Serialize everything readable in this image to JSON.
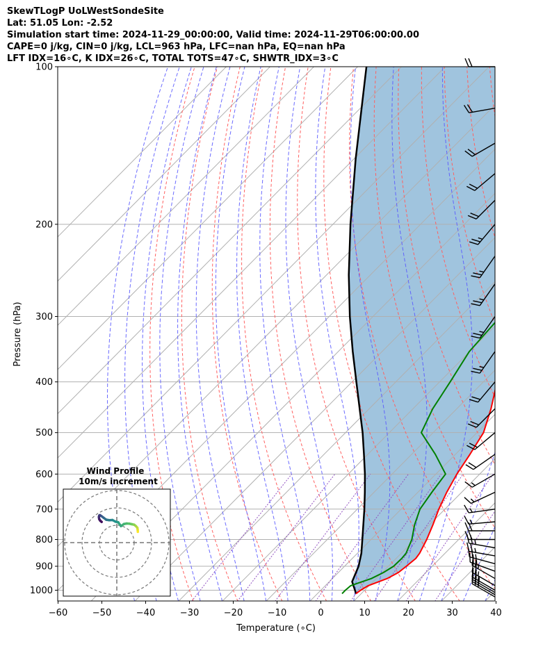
{
  "header": {
    "line1": "SkewTLogP UoLWestSondeSite",
    "line2": "Lat: 51.05   Lon: -2.52",
    "line3": "Simulation start time: 2024-11-29_00:00:00, Valid time: 2024-11-29T06:00:00.00",
    "line4": "CAPE=0 j/kg, CIN=0 j/kg, LCL=963 hPa, LFC=nan hPa, EQ=nan hPa",
    "line5": "LFT IDX=16∘C, K IDX=26∘C, TOTAL TOTS=47∘C, SHWTR_IDX=3∘C"
  },
  "chart_data": {
    "type": "skewt-logp",
    "xlabel": "Temperature (∘C)",
    "ylabel": "Pressure (hPa)",
    "xlim": [
      -60,
      40
    ],
    "ylim": [
      1050,
      100
    ],
    "x_ticks": [
      "−60",
      "−50",
      "−40",
      "−30",
      "−20",
      "−10",
      "0",
      "10",
      "20",
      "30",
      "40"
    ],
    "x_tick_values": [
      -60,
      -50,
      -40,
      -30,
      -20,
      -10,
      0,
      10,
      20,
      30,
      40
    ],
    "y_ticks": [
      "100",
      "200",
      "300",
      "400",
      "500",
      "600",
      "700",
      "800",
      "900",
      "1000"
    ],
    "y_tick_values": [
      100,
      200,
      300,
      400,
      500,
      600,
      700,
      800,
      900,
      1000
    ],
    "temperature": {
      "color": "#ff0000",
      "pressure": [
        1015,
        1000,
        980,
        950,
        925,
        900,
        870,
        850,
        800,
        750,
        700,
        650,
        600,
        550,
        500,
        450,
        400,
        350,
        300,
        250,
        225,
        200,
        190,
        175,
        165,
        150,
        140,
        125,
        115,
        100
      ],
      "temp": [
        8.8,
        9.1,
        9.8,
        12.5,
        13.7,
        14.1,
        14.5,
        14.2,
        12.7,
        10.8,
        8.6,
        6.6,
        4.8,
        3.3,
        1.5,
        -2.2,
        -6.9,
        -12.0,
        -16.8,
        -23.0,
        -27.5,
        -31.9,
        -32.2,
        -32.0,
        -33.9,
        -35.5,
        -39.2,
        -42.3,
        -47.5,
        -53.0
      ]
    },
    "dewpoint": {
      "color": "#008000",
      "pressure": [
        1015,
        1000,
        980,
        950,
        925,
        900,
        870,
        850,
        800,
        750,
        700,
        650,
        600,
        550,
        500,
        450,
        400,
        350,
        300,
        250,
        200,
        190,
        175,
        165,
        150,
        140,
        125,
        100
      ],
      "temp": [
        5.6,
        5.6,
        5.8,
        8.9,
        10.3,
        11.2,
        11.3,
        11.1,
        9.3,
        6.6,
        4.3,
        3.2,
        2.2,
        -4.6,
        -12.7,
        -15.5,
        -17.6,
        -20.1,
        -20.9,
        -26.8,
        -35.2,
        -35.9,
        -38.0,
        -40.3,
        -43.1,
        -45.3,
        -50.8,
        -60.5
      ]
    },
    "parcel": {
      "color": "#000000",
      "pressure": [
        1015,
        1000,
        963,
        900,
        850,
        800,
        750,
        700,
        650,
        600,
        550,
        500,
        450,
        400,
        350,
        300,
        250,
        200,
        150,
        100
      ],
      "temp": [
        8.8,
        7.8,
        5.2,
        3.2,
        0.9,
        -2.0,
        -5.1,
        -8.4,
        -12.1,
        -16.2,
        -20.9,
        -26.1,
        -32.2,
        -39.0,
        -46.7,
        -55.3,
        -64.9,
        -76.0,
        -89.6,
        -108.0
      ]
    },
    "wind_profile_inset": {
      "title": "Wind Profile",
      "subtitle": "10m/s increment",
      "rings_ms": [
        10,
        20,
        30
      ],
      "hodograph_u": [
        12.1,
        12.0,
        11.8,
        11.0,
        10.0,
        8.6,
        7.2,
        5.7,
        4.1,
        2.4,
        0.8,
        -0.8,
        -2.5,
        -4.3,
        -6.1,
        -7.7,
        -8.9,
        -9.7,
        -10.1,
        -10.3,
        -10.1,
        -9.5,
        -8.7
      ],
      "hodograph_v": [
        6.2,
        7.5,
        8.6,
        9.5,
        10.3,
        10.6,
        10.9,
        11.0,
        10.7,
        9.5,
        11.7,
        12.1,
        13.0,
        12.9,
        13.2,
        14.4,
        15.3,
        15.8,
        15.6,
        14.7,
        13.5,
        12.6,
        11.9
      ]
    },
    "wind_barbs": {
      "pressure": [
        1030,
        1020,
        1010,
        1000,
        980,
        950,
        920,
        890,
        860,
        830,
        800,
        770,
        740,
        700,
        650,
        600,
        550,
        500,
        450,
        400,
        350,
        300,
        260,
        230,
        200,
        180,
        160,
        140,
        120,
        100
      ],
      "speed_kt": [
        30,
        30,
        25,
        25,
        25,
        25,
        25,
        25,
        25,
        25,
        20,
        20,
        15,
        15,
        15,
        15,
        20,
        20,
        20,
        20,
        25,
        25,
        25,
        25,
        25,
        20,
        20,
        20,
        20,
        20
      ],
      "dir_deg": [
        300,
        300,
        300,
        300,
        300,
        300,
        290,
        285,
        280,
        280,
        270,
        270,
        265,
        262,
        245,
        240,
        235,
        230,
        225,
        220,
        215,
        215,
        215,
        215,
        220,
        225,
        230,
        240,
        260,
        270
      ]
    }
  }
}
